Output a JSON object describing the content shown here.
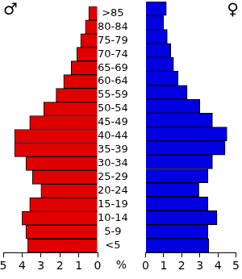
{
  "chart_data": {
    "type": "bar",
    "orientation": "horizontal",
    "categories": [
      "<5",
      "5-9",
      "10-14",
      "15-19",
      "20-24",
      "25-29",
      "30-34",
      "35-39",
      "40-44",
      "45-49",
      "50-54",
      "55-59",
      "60-64",
      "65-69",
      "70-74",
      "75-79",
      "80-84",
      ">85"
    ],
    "series": [
      {
        "name": "♂",
        "color": "#e00000",
        "values": [
          3.7,
          3.8,
          4.0,
          3.6,
          3.0,
          3.45,
          3.8,
          4.4,
          4.4,
          3.6,
          2.85,
          2.2,
          1.8,
          1.4,
          1.1,
          0.9,
          0.65,
          0.47
        ]
      },
      {
        "name": "♀",
        "color": "#0000e0",
        "values": [
          3.5,
          3.45,
          3.95,
          3.45,
          2.95,
          3.45,
          3.7,
          4.4,
          4.5,
          3.7,
          3.0,
          2.3,
          1.8,
          1.55,
          1.4,
          1.2,
          1.0,
          1.15
        ]
      }
    ],
    "xlabel": "%",
    "xlim": [
      0,
      5
    ],
    "xticks": [
      0,
      1,
      2,
      3,
      4,
      5
    ],
    "grid": false
  }
}
